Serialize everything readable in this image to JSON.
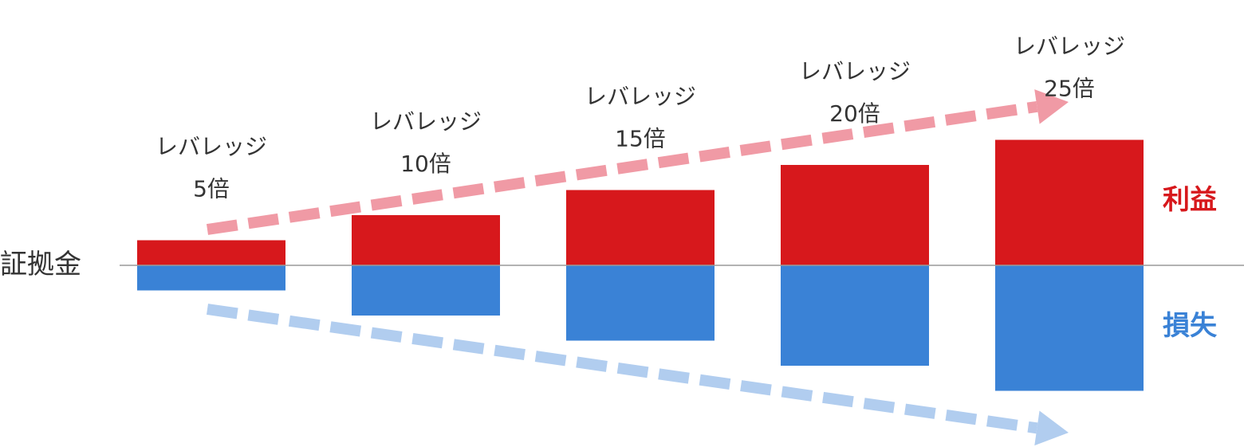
{
  "chart_data": {
    "type": "bar",
    "baseline_label": "証拠金",
    "categories": [
      {
        "line1": "レバレッジ",
        "line2": "5倍"
      },
      {
        "line1": "レバレッジ",
        "line2": "10倍"
      },
      {
        "line1": "レバレッジ",
        "line2": "15倍"
      },
      {
        "line1": "レバレッジ",
        "line2": "20倍"
      },
      {
        "line1": "レバレッジ",
        "line2": "25倍"
      }
    ],
    "series": [
      {
        "name": "利益",
        "color": "#d7181c",
        "trend_color": "#f09aa5",
        "values": [
          5,
          10,
          15,
          20,
          25
        ]
      },
      {
        "name": "損失",
        "color": "#3a82d6",
        "trend_color": "#b1cdef",
        "values": [
          -5,
          -10,
          -15,
          -20,
          -25
        ]
      }
    ],
    "ylim": [
      -25,
      25
    ],
    "legend": "right"
  }
}
